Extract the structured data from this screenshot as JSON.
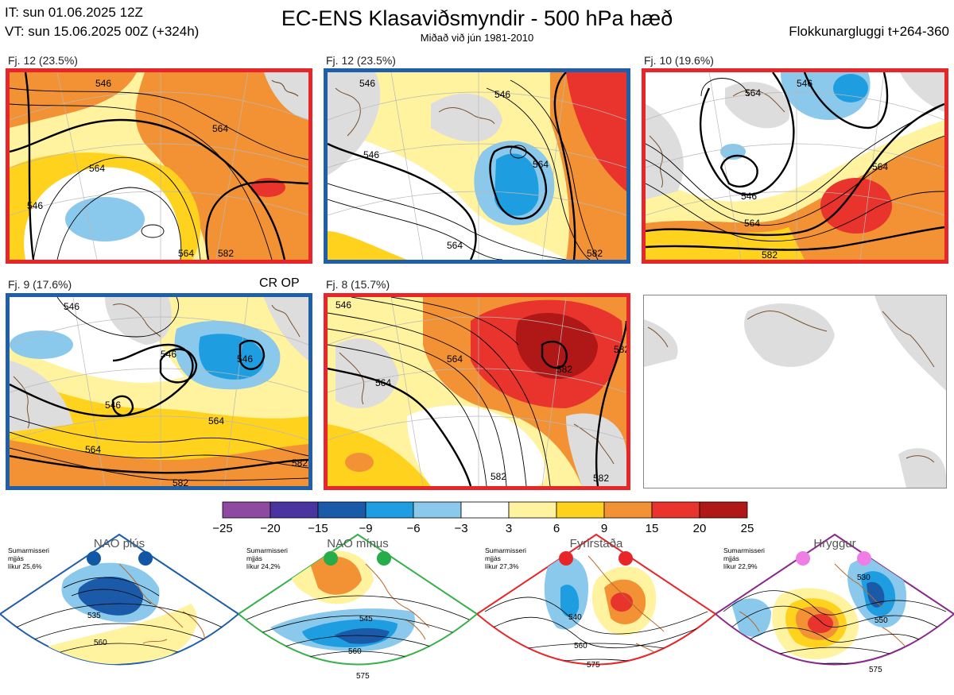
{
  "header": {
    "it_line": "IT: sun 01.06.2025 12Z",
    "vt_line": "VT: sun 15.06.2025 00Z  (+324h)",
    "title": "EC-ENS Klasaviðsmyndir - 500 hPa hæð",
    "subtitle": "Miðað við jún 1981-2010",
    "window": "Flokkunargluggi t+264-360"
  },
  "panels": [
    {
      "label": "Fj. 12 (23.5%)",
      "border": "#e8262a",
      "contours": [
        "546",
        "564",
        "564",
        "546",
        "564",
        "582"
      ]
    },
    {
      "label": "Fj. 12 (23.5%)",
      "border": "#1f5ea8",
      "contours": [
        "546",
        "546",
        "546",
        "564",
        "564",
        "582"
      ]
    },
    {
      "label": "Fj. 10 (19.6%)",
      "border": "#e8262a",
      "contours": [
        "564",
        "546",
        "546",
        "564",
        "564",
        "582"
      ]
    },
    {
      "label": "Fj. 9 (17.6%)",
      "border": "#1f5ea8",
      "extra": "CR OP",
      "contours": [
        "546",
        "546",
        "546",
        "546",
        "564",
        "564",
        "582",
        "582"
      ]
    },
    {
      "label": "Fj. 8 (15.7%)",
      "border": "#e8262a",
      "contours": [
        "546",
        "564",
        "564",
        "582",
        "582",
        "582",
        "582"
      ]
    }
  ],
  "colorbar": {
    "ticks": [
      "−25",
      "−20",
      "−15",
      "−9",
      "−6",
      "−3",
      "3",
      "6",
      "9",
      "15",
      "20",
      "25"
    ],
    "colors": [
      "#8e4aa0",
      "#4a35a0",
      "#1a5aa8",
      "#1e9ee0",
      "#8ac8ec",
      "#ffffff",
      "#fff3a0",
      "#ffd21e",
      "#f39234",
      "#e8342c",
      "#b01818"
    ]
  },
  "regimes": [
    {
      "name": "NAO plús",
      "dot_color": "#1256a6",
      "border": "#1f5ea8",
      "note": [
        "Sumarmisseri",
        "mjjás",
        "líkur 25,6%"
      ],
      "contours": [
        "535",
        "560"
      ]
    },
    {
      "name": "NAO mínus",
      "dot_color": "#26ac48",
      "border": "#36b04a",
      "note": [
        "Sumarmisseri",
        "mjjás",
        "líkur 24,2%"
      ],
      "contours": [
        "545",
        "560",
        "575"
      ]
    },
    {
      "name": "Fyrirstaða",
      "dot_color": "#e8262a",
      "border": "#e8262a",
      "note": [
        "Sumarmisseri",
        "mjjás",
        "líkur 27,3%"
      ],
      "contours": [
        "540",
        "560",
        "575"
      ]
    },
    {
      "name": "Hryggur",
      "dot_color": "#ee7ee6",
      "border": "#8a2a8a",
      "note": [
        "Sumarmisseri",
        "mjjás",
        "líkur 22,9%"
      ],
      "contours": [
        "530",
        "550",
        "575"
      ]
    }
  ]
}
